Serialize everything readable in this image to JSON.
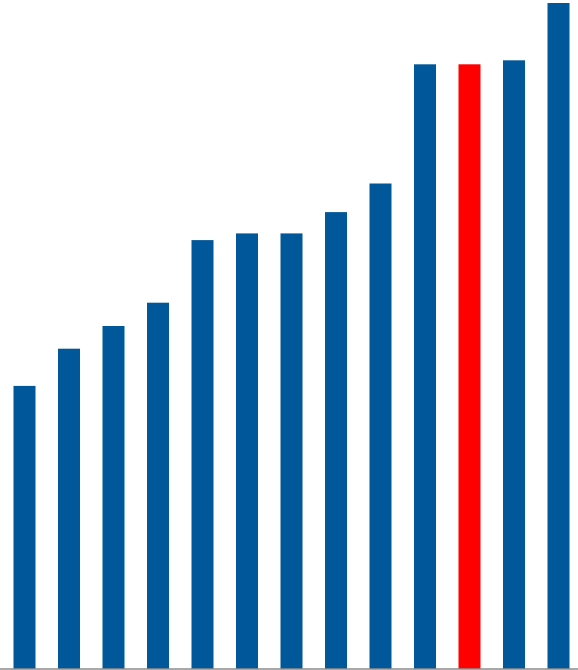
{
  "chart_data": {
    "type": "bar",
    "title": "",
    "xlabel": "",
    "ylabel": "",
    "ylim": [
      0,
      100
    ],
    "grid": false,
    "legend": "none",
    "values": [
      42.5,
      48.1,
      51.5,
      55.0,
      64.4,
      65.4,
      65.4,
      68.6,
      72.9,
      90.8,
      90.8,
      91.4,
      100.0
    ],
    "highlight_index": 10,
    "colors": {
      "bar": "#00589a",
      "highlight": "#ff0000",
      "axis": "#8c8c8c"
    }
  }
}
